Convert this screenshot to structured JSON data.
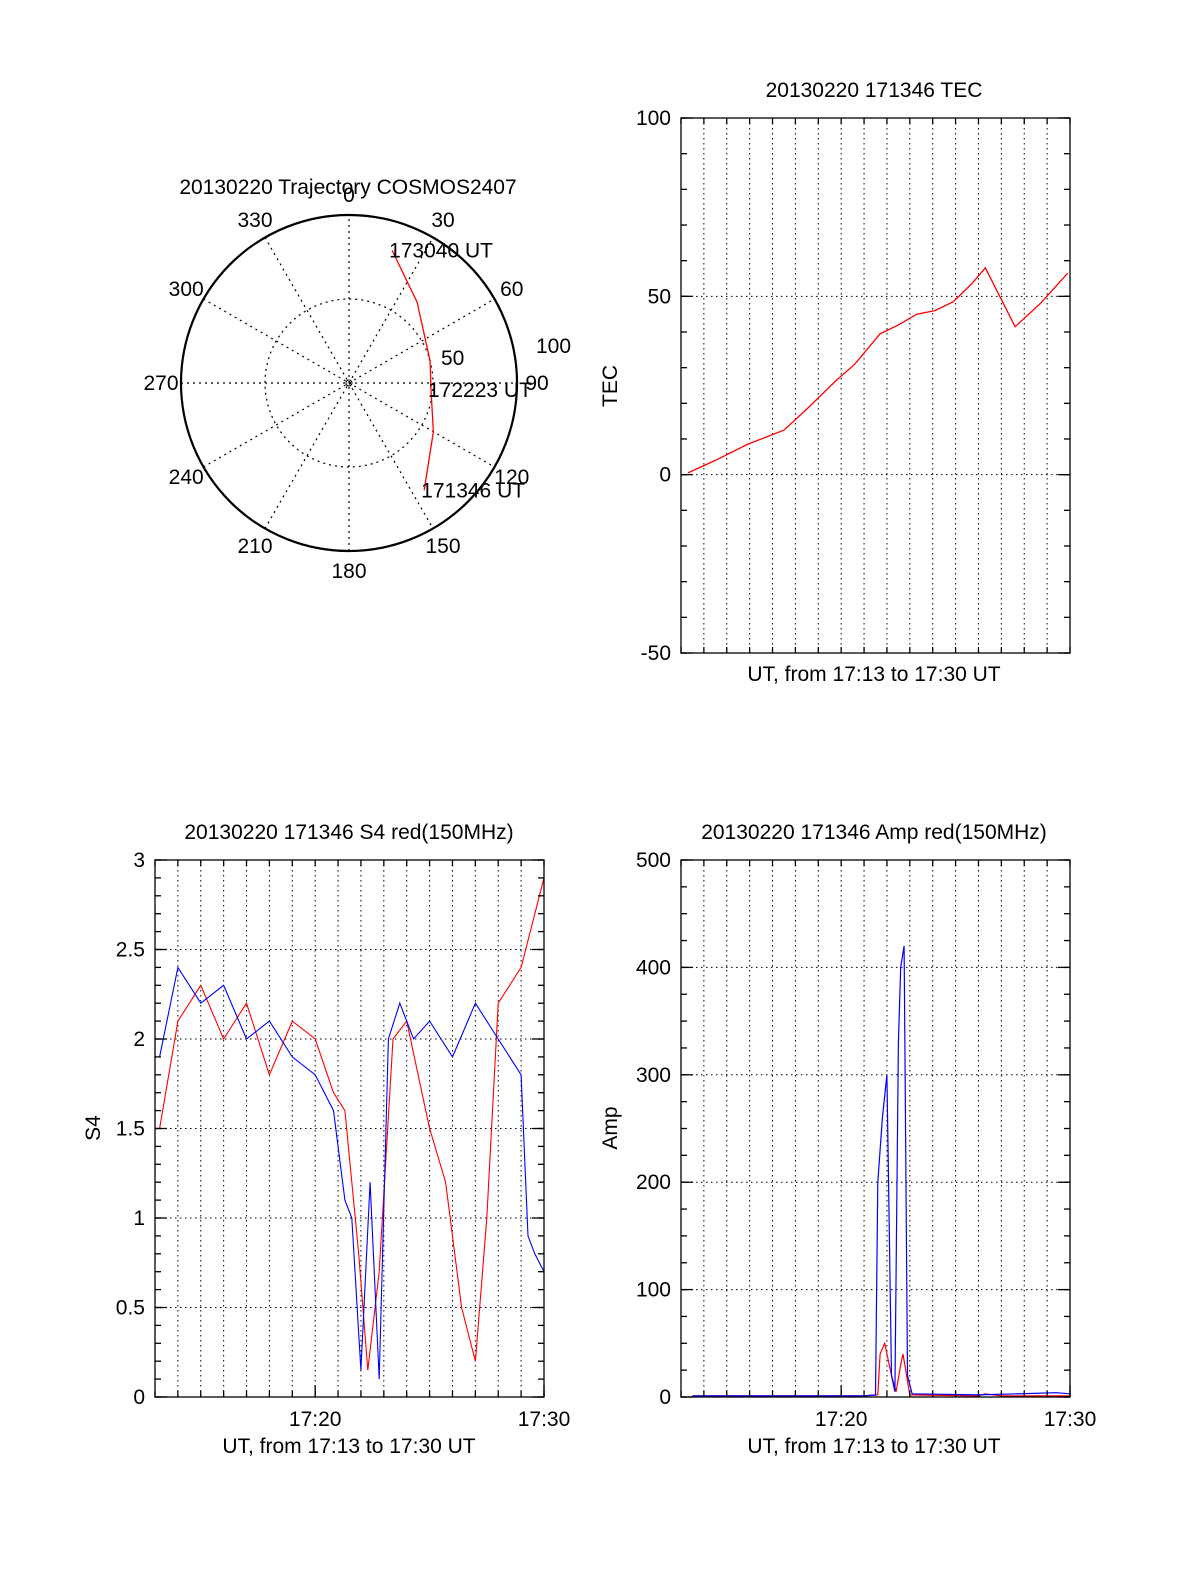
{
  "colors": {
    "red": "#ff0000",
    "blue": "#0000ff",
    "axis": "#000000"
  },
  "chart_data": [
    {
      "type": "polar-trajectory",
      "title": "20130220 Trajectory COSMOS2407",
      "azimuth_labels": [
        "0",
        "30",
        "60",
        "90",
        "120",
        "150",
        "180",
        "210",
        "240",
        "270",
        "300",
        "330"
      ],
      "radius_labels": [
        "50",
        "100"
      ],
      "rmax": 100,
      "trajectory": {
        "color": "red",
        "points": [
          {
            "az": 18,
            "r": 83,
            "label": "173040 UT"
          },
          {
            "az": 40,
            "r": 63
          },
          {
            "az": 75,
            "r": 50
          },
          {
            "az": 95,
            "r": 49,
            "label": "172223 UT"
          },
          {
            "az": 120,
            "r": 58
          },
          {
            "az": 145,
            "r": 78,
            "label": "171346 UT"
          }
        ]
      }
    },
    {
      "type": "line",
      "title": "20130220 171346 TEC",
      "ylabel": "TEC",
      "xlabel": "UT, from 17:13 to 17:30 UT",
      "xlim": [
        0,
        17
      ],
      "ylim": [
        -50,
        100
      ],
      "yticks": [
        "100",
        "50",
        "0",
        "-50"
      ],
      "xtick_labels": [],
      "series": [
        {
          "color": "red",
          "x": [
            0.3,
            1.5,
            2.9,
            4.5,
            5.6,
            6.8,
            7.6,
            8.7,
            9.5,
            10.3,
            11.1,
            11.9,
            12.7,
            13.3,
            14.6,
            15.7,
            16.9
          ],
          "y": [
            0.5,
            4,
            8.5,
            12.5,
            19,
            26.5,
            31,
            39.5,
            42,
            45,
            46,
            48.5,
            53.5,
            58,
            41.5,
            48,
            56.5
          ]
        }
      ]
    },
    {
      "type": "line",
      "title": "20130220 171346 S4 red(150MHz)",
      "ylabel": "S4",
      "xlabel": "UT, from 17:13 to 17:30 UT",
      "xlim": [
        0,
        17
      ],
      "ylim": [
        0,
        3
      ],
      "yticks": [
        "3",
        "2.5",
        "2",
        "1.5",
        "1",
        "0.5",
        "0"
      ],
      "xtick_labels": [
        "17:20",
        "17:30"
      ],
      "series": [
        {
          "color": "red",
          "x": [
            0.2,
            1,
            2,
            3,
            4,
            5,
            6,
            7,
            7.8,
            8.3,
            8.6,
            8.9,
            9.3,
            9.8,
            10.4,
            11,
            11.5,
            12,
            12.7,
            13.4,
            14,
            14.5,
            15,
            16,
            17
          ],
          "y": [
            1.5,
            2.1,
            2.3,
            2.0,
            2.2,
            1.8,
            2.1,
            2.0,
            1.7,
            1.6,
            1.2,
            0.8,
            0.15,
            0.7,
            2.0,
            2.1,
            1.8,
            1.5,
            1.2,
            0.5,
            0.2,
            1.0,
            2.2,
            2.4,
            2.9
          ]
        },
        {
          "color": "blue",
          "x": [
            0.2,
            1,
            2,
            3,
            4,
            5,
            6,
            7,
            7.8,
            8.3,
            8.6,
            9,
            9.4,
            9.8,
            10.2,
            10.7,
            11.3,
            12,
            13,
            14,
            15,
            16,
            16.3,
            16.6,
            17
          ],
          "y": [
            1.9,
            2.4,
            2.2,
            2.3,
            2.0,
            2.1,
            1.9,
            1.8,
            1.6,
            1.1,
            1.0,
            0.15,
            1.2,
            0.1,
            2.0,
            2.2,
            2.0,
            2.1,
            1.9,
            2.2,
            2.0,
            1.8,
            0.9,
            0.8,
            0.7
          ]
        }
      ]
    },
    {
      "type": "line",
      "title": "20130220 171346 Amp red(150MHz)",
      "ylabel": "Amp",
      "xlabel": "UT, from 17:13 to 17:30 UT",
      "xlim": [
        0,
        17
      ],
      "ylim": [
        0,
        500
      ],
      "yticks": [
        "500",
        "400",
        "300",
        "200",
        "100",
        "0"
      ],
      "xtick_labels": [
        "17:20",
        "17:30"
      ],
      "series": [
        {
          "color": "red",
          "x": [
            0.5,
            8,
            8.6,
            8.7,
            8.9,
            9.2,
            9.4,
            9.6,
            9.7,
            10,
            13,
            13.3,
            14,
            17
          ],
          "y": [
            1,
            1,
            2,
            40,
            50,
            20,
            5,
            30,
            40,
            2,
            1,
            3,
            1,
            1
          ]
        },
        {
          "color": "blue",
          "x": [
            0.5,
            8,
            8.5,
            8.6,
            8.8,
            9.0,
            9.2,
            9.35,
            9.5,
            9.6,
            9.75,
            9.9,
            10.1,
            13,
            16.4,
            17
          ],
          "y": [
            1,
            1,
            2,
            200,
            260,
            300,
            20,
            5,
            330,
            400,
            420,
            20,
            3,
            2,
            4,
            3
          ]
        }
      ]
    }
  ]
}
